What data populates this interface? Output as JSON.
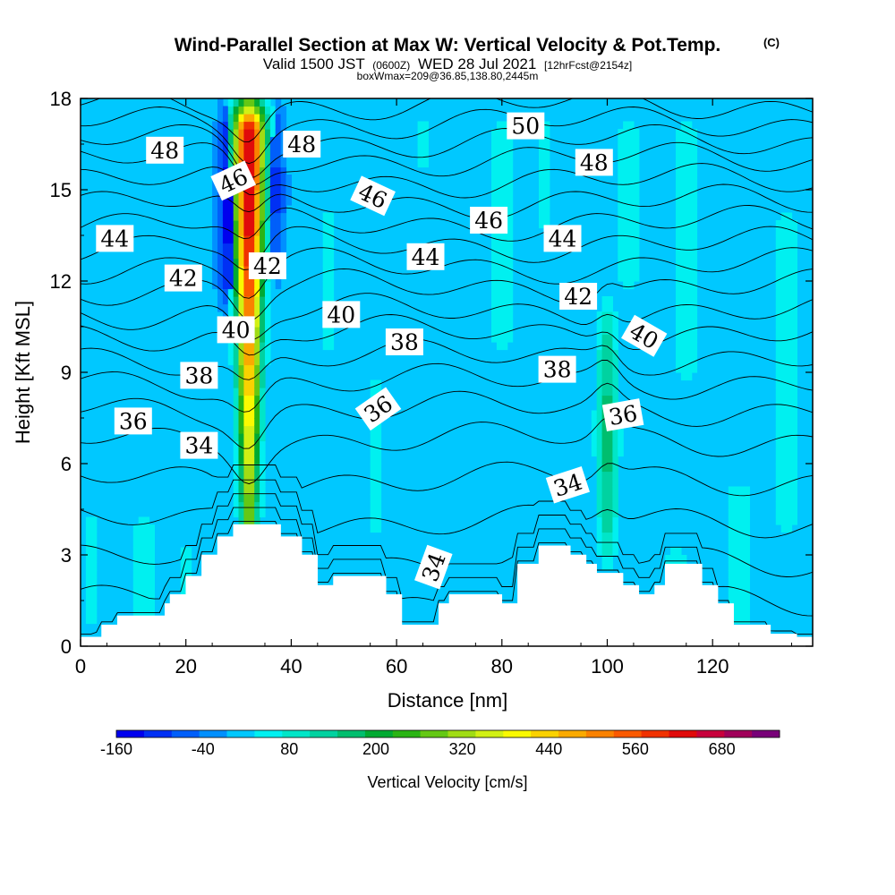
{
  "header": {
    "title": "Wind-Parallel Section at Max W: Vertical Velocity & Pot.Temp.",
    "copyright": "(C)",
    "valid_prefix": "Valid 1500 JST",
    "valid_utc": "(0600Z)",
    "valid_date": "WED 28 Jul 2021",
    "forecast_info": "[12hrFcst@2154z]",
    "box_info": "boxWmax=209@36.85,138.80,2445m"
  },
  "chart_data": {
    "type": "heatmap",
    "title": "Wind-Parallel Section at Max W: Vertical Velocity & Pot.Temp.",
    "xlabel": "Distance [nm]",
    "ylabel": "Height [Kft MSL]",
    "xlim": [
      0,
      139
    ],
    "ylim": [
      0,
      18
    ],
    "x_ticks": [
      0,
      20,
      40,
      60,
      80,
      100,
      120
    ],
    "y_ticks": [
      0,
      3,
      6,
      9,
      12,
      15,
      18
    ],
    "grid": false,
    "colorbar": {
      "label": "Vertical Velocity [cm/s]",
      "tick_labels": [
        "-160",
        "-40",
        "80",
        "200",
        "320",
        "440",
        "560",
        "680"
      ],
      "tick_values": [
        -160,
        -40,
        80,
        200,
        320,
        440,
        560,
        680
      ],
      "min": -160,
      "max": 760,
      "step": 40,
      "colors": [
        "#0000ee",
        "#0030f4",
        "#005ffa",
        "#0090ff",
        "#00c8ff",
        "#00f0f0",
        "#00e6c8",
        "#00d2a0",
        "#00be6e",
        "#00aa32",
        "#2ab414",
        "#64c814",
        "#a0dc14",
        "#d2f014",
        "#fafa00",
        "#fad200",
        "#faaa00",
        "#fa8200",
        "#fa5a00",
        "#f03200",
        "#e00a0a",
        "#c8003c",
        "#a0005a",
        "#780078"
      ]
    },
    "background_velocity": 0,
    "velocity_features": [
      {
        "x": 32,
        "y0": 0.5,
        "y1": 18,
        "w": 4.5,
        "peak": 700,
        "shape": "plume"
      },
      {
        "x": 100,
        "y0": 2.5,
        "y1": 11.5,
        "w": 3.0,
        "peak": 200,
        "shape": "column"
      },
      {
        "x": 28,
        "y0": 11,
        "y1": 18,
        "w": 2.5,
        "peak": -160,
        "shape": "column"
      },
      {
        "x": 37,
        "y0": 12,
        "y1": 18,
        "w": 2.5,
        "peak": -100,
        "shape": "column"
      },
      {
        "x": 2,
        "y0": 0,
        "y1": 5,
        "w": 4,
        "peak": 50,
        "shape": "blob"
      },
      {
        "x": 12,
        "y0": 0,
        "y1": 5,
        "w": 5,
        "peak": 50,
        "shape": "blob"
      },
      {
        "x": 20,
        "y0": 0,
        "y1": 4,
        "w": 4,
        "peak": 50,
        "shape": "blob"
      },
      {
        "x": 56,
        "y0": 3,
        "y1": 9.5,
        "w": 4,
        "peak": 50,
        "shape": "blob"
      },
      {
        "x": 47,
        "y0": 9,
        "y1": 15,
        "w": 4,
        "peak": 50,
        "shape": "blob"
      },
      {
        "x": 65,
        "y0": 15,
        "y1": 18,
        "w": 4,
        "peak": 50,
        "shape": "blob"
      },
      {
        "x": 80,
        "y0": 9,
        "y1": 18,
        "w": 5,
        "peak": 50,
        "shape": "blob"
      },
      {
        "x": 88,
        "y0": 13,
        "y1": 18,
        "w": 4,
        "peak": 50,
        "shape": "blob"
      },
      {
        "x": 104,
        "y0": 11,
        "y1": 18,
        "w": 5,
        "peak": 50,
        "shape": "blob"
      },
      {
        "x": 115,
        "y0": 8,
        "y1": 18,
        "w": 5,
        "peak": 50,
        "shape": "blob"
      },
      {
        "x": 125,
        "y0": 0,
        "y1": 6,
        "w": 7,
        "peak": 50,
        "shape": "blob"
      },
      {
        "x": 134,
        "y0": 3,
        "y1": 15,
        "w": 5,
        "peak": 50,
        "shape": "blob"
      },
      {
        "x": 113,
        "y0": 0,
        "y1": 4,
        "w": 6,
        "peak": 50,
        "shape": "blob"
      }
    ],
    "terrain": {
      "x": [
        0,
        4,
        7,
        10,
        16,
        17,
        20,
        23,
        26,
        29,
        32,
        38,
        42,
        45,
        48,
        52,
        58,
        61,
        64,
        68,
        70,
        74,
        80,
        83,
        87,
        93,
        96,
        98,
        100,
        103,
        106,
        109,
        111,
        115,
        118,
        121,
        124,
        131,
        136,
        139
      ],
      "height": [
        0.3,
        0.7,
        1.0,
        1.0,
        1.4,
        1.7,
        2.3,
        3.0,
        3.6,
        4.0,
        4.0,
        3.6,
        3.0,
        2.0,
        2.3,
        2.3,
        1.7,
        0.7,
        0.7,
        1.4,
        1.7,
        1.7,
        1.4,
        2.7,
        3.3,
        3.0,
        2.7,
        2.4,
        2.4,
        2.0,
        1.7,
        2.0,
        2.7,
        2.7,
        2.0,
        1.4,
        0.7,
        0.4,
        0.3,
        0.3
      ]
    },
    "theta_contours": {
      "levels": [
        31,
        32,
        33,
        34,
        35,
        36,
        37,
        38,
        39,
        40,
        41,
        42,
        43,
        44,
        45,
        46,
        47,
        48,
        49,
        50,
        51
      ],
      "base_height_kft": [
        0.2,
        1.5,
        2.8,
        4.1,
        5.5,
        6.8,
        7.8,
        8.7,
        9.5,
        10.3,
        11.0,
        11.8,
        12.5,
        13.2,
        13.9,
        14.6,
        15.3,
        16.0,
        16.6,
        17.2,
        17.8
      ],
      "labels": [
        {
          "text": "48",
          "x": 16,
          "y": 16.3,
          "angle": 0
        },
        {
          "text": "46",
          "x": 29,
          "y": 15.3,
          "angle": -25
        },
        {
          "text": "48",
          "x": 42,
          "y": 16.5,
          "angle": 0
        },
        {
          "text": "50",
          "x": 84.5,
          "y": 17.1,
          "angle": 0
        },
        {
          "text": "48",
          "x": 97.5,
          "y": 15.9,
          "angle": 0
        },
        {
          "text": "46",
          "x": 55.5,
          "y": 14.8,
          "angle": 25
        },
        {
          "text": "46",
          "x": 77.5,
          "y": 14.0,
          "angle": 0
        },
        {
          "text": "44",
          "x": 6.5,
          "y": 13.4,
          "angle": 0
        },
        {
          "text": "44",
          "x": 65.5,
          "y": 12.8,
          "angle": 0
        },
        {
          "text": "44",
          "x": 91.5,
          "y": 13.4,
          "angle": 0
        },
        {
          "text": "42",
          "x": 19.5,
          "y": 12.1,
          "angle": 0
        },
        {
          "text": "42",
          "x": 35.5,
          "y": 12.5,
          "angle": 0
        },
        {
          "text": "42",
          "x": 94.5,
          "y": 11.5,
          "angle": 0
        },
        {
          "text": "40",
          "x": 29.5,
          "y": 10.4,
          "angle": 0
        },
        {
          "text": "40",
          "x": 49.5,
          "y": 10.9,
          "angle": 0
        },
        {
          "text": "40",
          "x": 107,
          "y": 10.2,
          "angle": 30
        },
        {
          "text": "38",
          "x": 61.5,
          "y": 10.0,
          "angle": 0
        },
        {
          "text": "38",
          "x": 22.5,
          "y": 8.9,
          "angle": 0
        },
        {
          "text": "38",
          "x": 90.5,
          "y": 9.1,
          "angle": 0
        },
        {
          "text": "36",
          "x": 10,
          "y": 7.4,
          "angle": 0
        },
        {
          "text": "36",
          "x": 56.5,
          "y": 7.8,
          "angle": -35
        },
        {
          "text": "36",
          "x": 103,
          "y": 7.6,
          "angle": -10
        },
        {
          "text": "34",
          "x": 22.5,
          "y": 6.6,
          "angle": 0
        },
        {
          "text": "34",
          "x": 92.5,
          "y": 5.3,
          "angle": -18
        },
        {
          "text": "34",
          "x": 67,
          "y": 2.6,
          "angle": -70
        }
      ]
    }
  }
}
